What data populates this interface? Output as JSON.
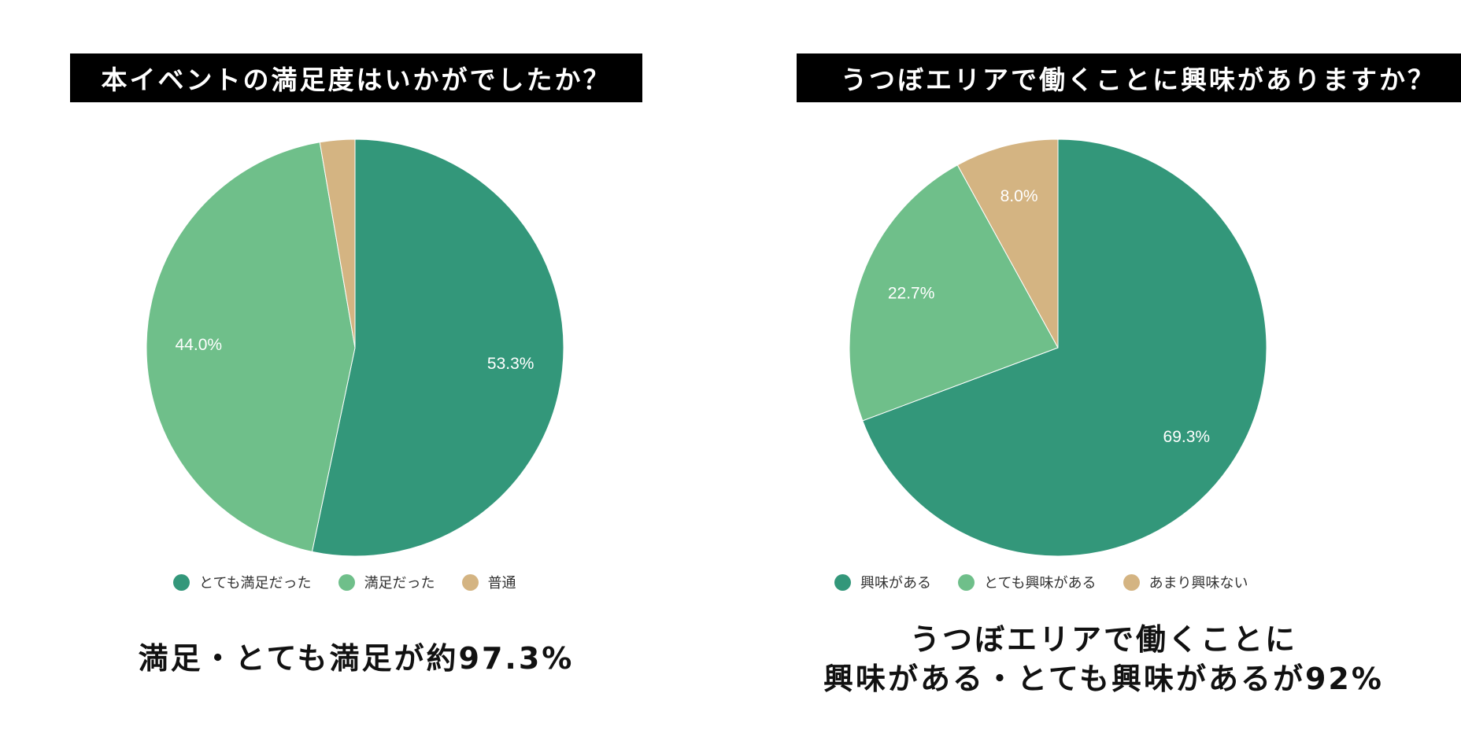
{
  "chart_data": [
    {
      "type": "pie",
      "title": "本イベントの満足度はいかがでしたか？",
      "categories": [
        "とても満足だった",
        "満足だった",
        "普通"
      ],
      "values": [
        53.3,
        44.0,
        2.7
      ],
      "labels": [
        "53.3%",
        "44.0%",
        ""
      ],
      "colors": [
        "#33977a",
        "#6fbf8a",
        "#d4b482"
      ],
      "legend_position": "bottom",
      "conclusion": [
        "満足・とても満足が約97.3%"
      ]
    },
    {
      "type": "pie",
      "title": "うつぼエリアで働くことに興味がありますか？",
      "categories": [
        "興味がある",
        "とても興味がある",
        "あまり興味ない"
      ],
      "values": [
        69.3,
        22.7,
        8.0
      ],
      "labels": [
        "69.3%",
        "22.7%",
        "8.0%"
      ],
      "colors": [
        "#33977a",
        "#6fbf8a",
        "#d4b482"
      ],
      "legend_position": "bottom",
      "conclusion": [
        "うつぼエリアで働くことに",
        "興味がある・とても興味があるが92%"
      ]
    }
  ]
}
